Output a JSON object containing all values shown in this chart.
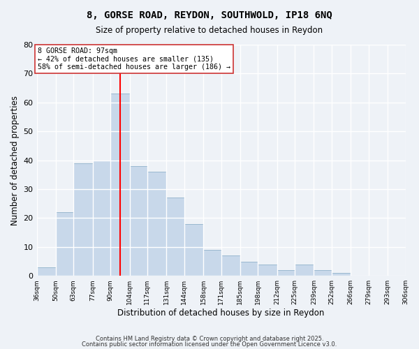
{
  "title_line1": "8, GORSE ROAD, REYDON, SOUTHWOLD, IP18 6NQ",
  "title_line2": "Size of property relative to detached houses in Reydon",
  "bar_values": [
    3,
    22,
    39,
    40,
    63,
    38,
    36,
    27,
    18,
    9,
    7,
    5,
    4,
    2,
    4,
    2,
    1
  ],
  "bin_edges": [
    36,
    50,
    63,
    77,
    90,
    104,
    117,
    131,
    144,
    158,
    171,
    185,
    198,
    212,
    225,
    239,
    252,
    266,
    279,
    293,
    306
  ],
  "x_tick_labels": [
    "36sqm",
    "50sqm",
    "63sqm",
    "77sqm",
    "90sqm",
    "104sqm",
    "117sqm",
    "131sqm",
    "144sqm",
    "158sqm",
    "171sqm",
    "185sqm",
    "198sqm",
    "212sqm",
    "225sqm",
    "239sqm",
    "252sqm",
    "266sqm",
    "279sqm",
    "293sqm",
    "306sqm"
  ],
  "xlabel": "Distribution of detached houses by size in Reydon",
  "ylabel": "Number of detached properties",
  "ylim": [
    0,
    80
  ],
  "yticks": [
    0,
    10,
    20,
    30,
    40,
    50,
    60,
    70,
    80
  ],
  "bar_color": "#c8d8ea",
  "bar_edge_color": "#9ab8d0",
  "red_line_x": 97,
  "annotation_title": "8 GORSE ROAD: 97sqm",
  "annotation_line1": "← 42% of detached houses are smaller (135)",
  "annotation_line2": "58% of semi-detached houses are larger (186) →",
  "background_color": "#eef2f7",
  "grid_color": "#ffffff",
  "footnote1": "Contains HM Land Registry data © Crown copyright and database right 2025.",
  "footnote2": "Contains public sector information licensed under the Open Government Licence v3.0."
}
